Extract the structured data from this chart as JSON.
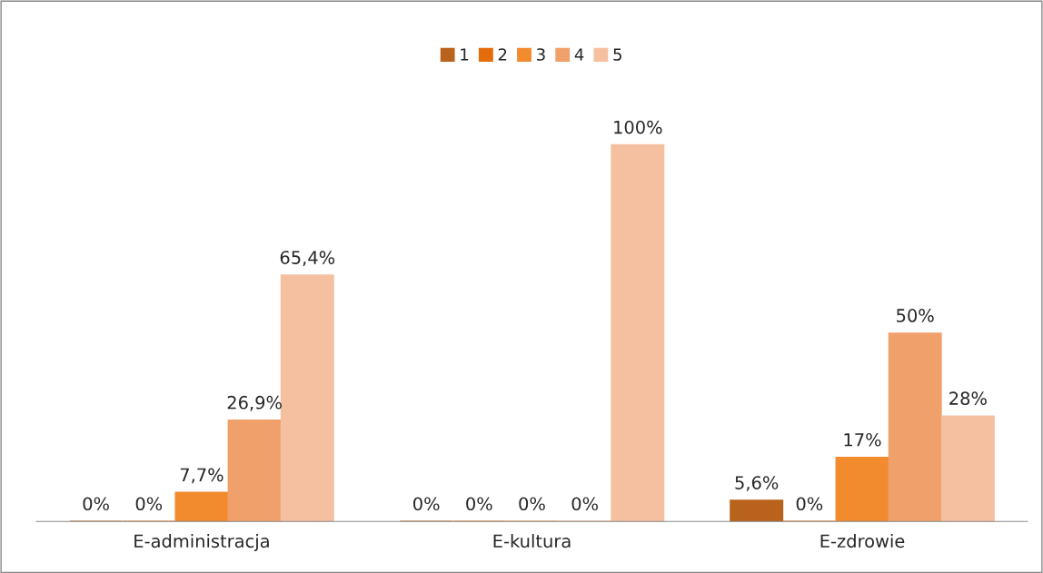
{
  "chart_data": {
    "type": "bar",
    "categories": [
      "E-administracja",
      "E-kultura",
      "E-zdrowie"
    ],
    "series": [
      {
        "name": "1",
        "color": "#b8621b",
        "values": [
          0,
          0,
          5.6
        ],
        "value_labels": [
          "0%",
          "0%",
          "5,6%"
        ]
      },
      {
        "name": "2",
        "color": "#e46c0a",
        "values": [
          0,
          0,
          0
        ],
        "value_labels": [
          "0%",
          "0%",
          "0%"
        ]
      },
      {
        "name": "3",
        "color": "#f28a2e",
        "values": [
          7.7,
          0,
          17
        ],
        "value_labels": [
          "7,7%",
          "0%",
          "17%"
        ]
      },
      {
        "name": "4",
        "color": "#f0a06a",
        "values": [
          26.9,
          0,
          50
        ],
        "value_labels": [
          "26,9%",
          "0%",
          "50%"
        ]
      },
      {
        "name": "5",
        "color": "#f5c0a0",
        "values": [
          65.4,
          100,
          28
        ],
        "value_labels": [
          "65,4%",
          "100%",
          "28%"
        ]
      }
    ],
    "legend": "top"
  }
}
